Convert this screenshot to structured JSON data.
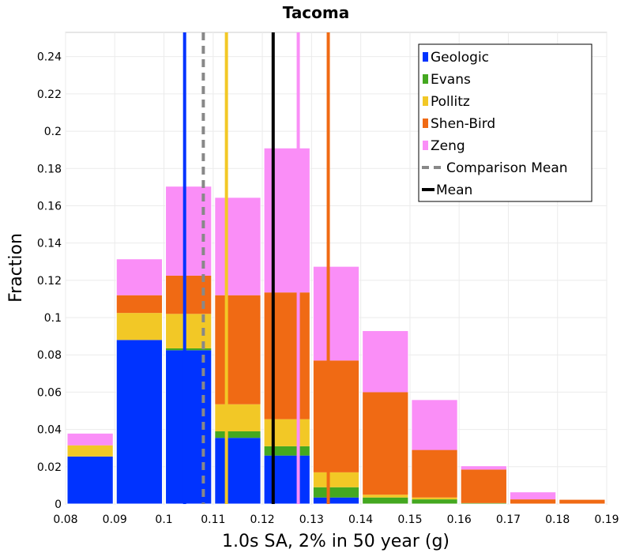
{
  "chart_data": {
    "type": "bar",
    "stacked": true,
    "title": "Tacoma",
    "xlabel": "1.0s SA, 2% in 50 year (g)",
    "ylabel": "Fraction",
    "xlim": [
      0.08,
      0.19
    ],
    "ylim": [
      0,
      0.253
    ],
    "grid": true,
    "legend_position": "top-right",
    "bin_width": 0.01,
    "bin_starts": [
      0.08,
      0.09,
      0.1,
      0.11,
      0.12,
      0.13,
      0.14,
      0.15,
      0.16,
      0.17,
      0.18
    ],
    "x_ticks": [
      "0.08",
      "0.09",
      "0.1",
      "0.11",
      "0.12",
      "0.13",
      "0.14",
      "0.15",
      "0.16",
      "0.17",
      "0.18",
      "0.19"
    ],
    "y_ticks": [
      "0",
      "0.02",
      "0.04",
      "0.06",
      "0.08",
      "0.1",
      "0.12",
      "0.14",
      "0.16",
      "0.18",
      "0.2",
      "0.22",
      "0.24"
    ],
    "series": [
      {
        "name": "Geologic",
        "color": "#0033ff",
        "values": [
          0.0255,
          0.088,
          0.0825,
          0.0355,
          0.026,
          0.0035,
          0,
          0,
          0,
          0,
          0
        ]
      },
      {
        "name": "Evans",
        "color": "#44a820",
        "values": [
          0,
          0,
          0.001,
          0.0035,
          0.005,
          0.0055,
          0.0035,
          0.0025,
          0.0005,
          0,
          0
        ]
      },
      {
        "name": "Pollitz",
        "color": "#f2c826",
        "values": [
          0.006,
          0.0145,
          0.0185,
          0.0145,
          0.0145,
          0.008,
          0.0015,
          0.001,
          0,
          0,
          0
        ]
      },
      {
        "name": "Shen-Bird",
        "color": "#f06a14",
        "values": [
          0,
          0.0095,
          0.0205,
          0.0585,
          0.068,
          0.06,
          0.055,
          0.0255,
          0.018,
          0.0025,
          0.0025
        ]
      },
      {
        "name": "Zeng",
        "color": "#fa8ef7",
        "values": [
          0.0065,
          0.0195,
          0.048,
          0.0525,
          0.0775,
          0.0505,
          0.033,
          0.027,
          0.002,
          0.004,
          0
        ]
      }
    ],
    "series_means": [
      {
        "name": "Geologic",
        "x": 0.1042
      },
      {
        "name": "Pollitz",
        "x": 0.1127
      },
      {
        "name": "Zeng",
        "x": 0.1273
      },
      {
        "name": "Shen-Bird",
        "x": 0.1334
      }
    ],
    "comparison_mean": {
      "name": "Comparison Mean",
      "x": 0.108,
      "color": "#888888"
    },
    "mean": {
      "name": "Mean",
      "x": 0.1222,
      "color": "#000000"
    }
  }
}
